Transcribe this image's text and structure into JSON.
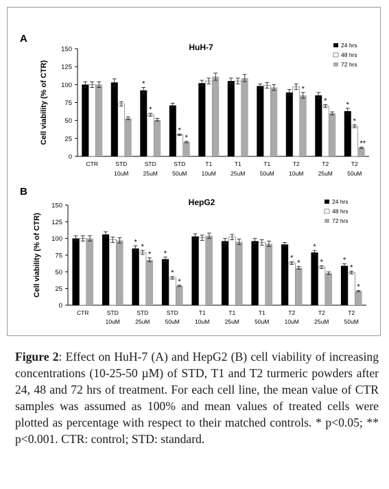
{
  "chart_data": [
    {
      "panel": "A",
      "type": "bar",
      "title": "HuH-7",
      "ylabel": "Cell viability (% of CTR)",
      "ylim": [
        0,
        150
      ],
      "yticks": [
        0,
        25,
        50,
        75,
        100,
        125,
        150
      ],
      "ytick_labels": [
        "0",
        "25",
        "50",
        "75",
        "100",
        "125",
        "150"
      ],
      "legend_position": "top-right",
      "categories": [
        [
          "CTR",
          ""
        ],
        [
          "STD",
          "10uM"
        ],
        [
          "STD",
          "25uM"
        ],
        [
          "STD",
          "50uM"
        ],
        [
          "T1",
          "10uM"
        ],
        [
          "T1",
          "25uM"
        ],
        [
          "T1",
          "50uM"
        ],
        [
          "T2",
          "10uM"
        ],
        [
          "T2",
          "25uM"
        ],
        [
          "T2",
          "50uM"
        ]
      ],
      "series": [
        {
          "name": "24 hrs",
          "color": "#000000",
          "values": [
            100,
            103,
            92,
            71,
            102,
            105,
            98,
            89,
            85,
            63
          ],
          "errors": [
            4,
            5,
            4,
            3,
            4,
            4,
            3,
            4,
            4,
            4
          ],
          "marks": [
            "",
            "",
            "*",
            "",
            "",
            "",
            "",
            "",
            "",
            "*"
          ]
        },
        {
          "name": "48 hrs",
          "color": "#ffffff",
          "values": [
            100,
            73,
            58,
            30,
            105,
            105,
            99,
            97,
            70,
            42
          ],
          "errors": [
            4,
            3,
            2,
            1,
            4,
            4,
            4,
            4,
            2,
            2
          ],
          "marks": [
            "",
            "",
            "*",
            "*",
            "",
            "",
            "",
            "",
            "*",
            "*"
          ]
        },
        {
          "name": "72 hrs",
          "color": "#aaaaaa",
          "values": [
            100,
            53,
            51,
            20,
            111,
            109,
            96,
            85,
            60,
            12
          ],
          "errors": [
            4,
            2,
            2,
            1,
            5,
            5,
            4,
            4,
            2,
            1
          ],
          "marks": [
            "",
            "",
            "",
            "*",
            "",
            "",
            "",
            "*",
            "",
            "**"
          ]
        }
      ]
    },
    {
      "panel": "B",
      "type": "bar",
      "title": "HepG2",
      "ylabel": "Cell viability (% of CTR)",
      "ylim": [
        0,
        150
      ],
      "yticks": [
        0,
        25,
        50,
        75,
        100,
        125,
        150
      ],
      "ytick_labels": [
        "0",
        "25",
        "50",
        "75",
        "100",
        "125",
        "150"
      ],
      "legend_position": "top-right",
      "categories": [
        [
          "CTR",
          ""
        ],
        [
          "STD",
          "10uM"
        ],
        [
          "STD",
          "25uM"
        ],
        [
          "STD",
          "50uM"
        ],
        [
          "T1",
          "10uM"
        ],
        [
          "T1",
          "25uM"
        ],
        [
          "T1",
          "50uM"
        ],
        [
          "T2",
          "10uM"
        ],
        [
          "T2",
          "25uM"
        ],
        [
          "T2",
          "50uM"
        ]
      ],
      "series": [
        {
          "name": "24  hrs",
          "color": "#000000",
          "values": [
            100,
            106,
            85,
            69,
            103,
            96,
            96,
            91,
            79,
            59
          ],
          "errors": [
            4,
            4,
            4,
            3,
            4,
            4,
            4,
            3,
            3,
            3
          ],
          "marks": [
            "",
            "",
            "*",
            "*",
            "",
            "",
            "",
            "",
            "*",
            "*"
          ]
        },
        {
          "name": "48  hrs",
          "color": "#ffffff",
          "values": [
            100,
            98,
            79,
            41,
            101,
            102,
            94,
            63,
            57,
            49
          ],
          "errors": [
            4,
            4,
            3,
            2,
            4,
            4,
            4,
            2,
            2,
            2
          ],
          "marks": [
            "",
            "",
            "*",
            "*",
            "",
            "",
            "",
            "*",
            "*",
            "*"
          ]
        },
        {
          "name": "72  hrs",
          "color": "#aaaaaa",
          "values": [
            100,
            97,
            68,
            29,
            104,
            95,
            92,
            56,
            48,
            21
          ],
          "errors": [
            4,
            4,
            3,
            1,
            4,
            4,
            4,
            2,
            2,
            1
          ],
          "marks": [
            "",
            "",
            "*",
            "*",
            "",
            "",
            "",
            "*",
            "",
            "*"
          ]
        }
      ]
    }
  ],
  "caption": {
    "label": "Figure 2",
    "text": ": Effect on HuH-7 (A) and HepG2 (B) cell viability of increasing concentrations (10-25-50 µM) of STD, T1 and T2 turmeric powders after 24, 48 and 72 hrs of treatment. For each cell line, the mean value of CTR samples was assumed as 100% and mean values of treated cells were plotted as percentage with respect to their matched controls. * p<0.05; ** p<0.001. CTR: control; STD: standard."
  }
}
